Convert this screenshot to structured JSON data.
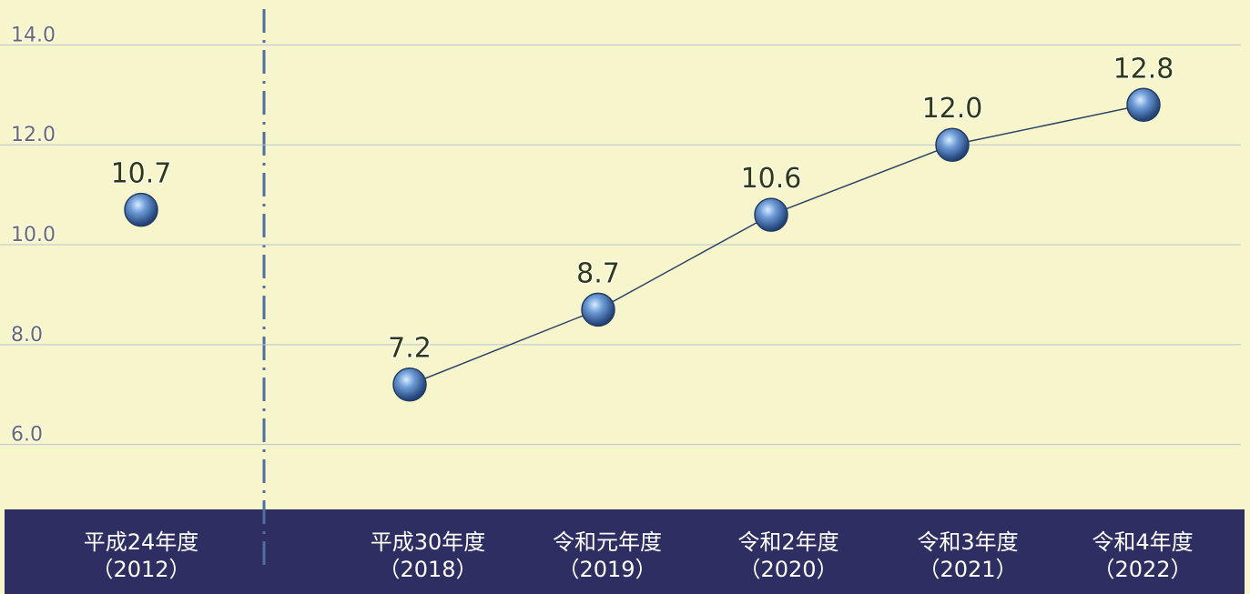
{
  "chart_data": {
    "type": "line",
    "categories": [
      "平成24年度\n（2012）",
      "平成30年度\n（2018）",
      "令和元年度\n（2019）",
      "令和2年度\n（2020）",
      "令和3年度\n（2021）",
      "令和4年度\n（2022）"
    ],
    "values": [
      10.7,
      7.2,
      8.7,
      10.6,
      12.0,
      12.8
    ],
    "value_labels": [
      "10.7",
      "7.2",
      "8.7",
      "10.6",
      "12.0",
      "12.8"
    ],
    "color": "#4a78b8",
    "ylim": [
      4.7,
      14.9
    ],
    "yticks": [
      {
        "value": 6,
        "label": "6.0"
      },
      {
        "value": 8,
        "label": "8.0"
      },
      {
        "value": 10,
        "label": "10.0"
      },
      {
        "value": 12,
        "label": "12.0"
      },
      {
        "value": 14,
        "label": "14.0"
      }
    ],
    "grid": true
  }
}
